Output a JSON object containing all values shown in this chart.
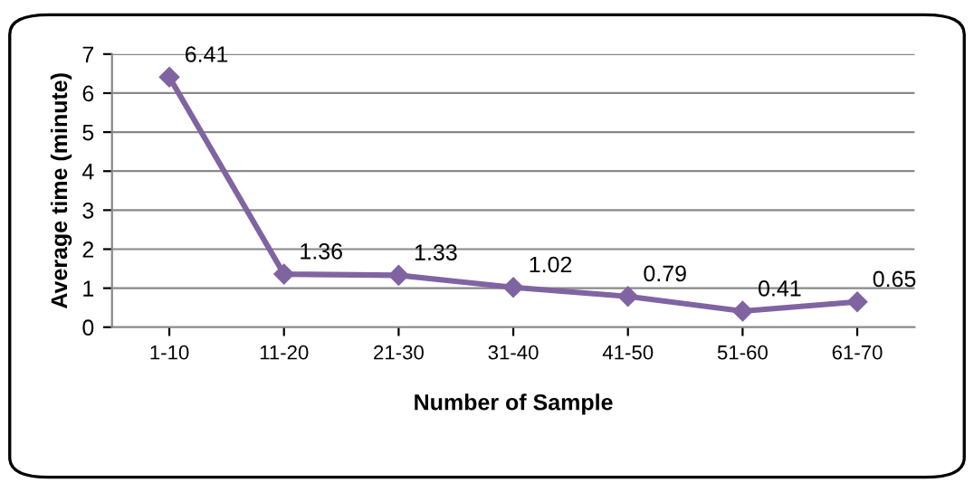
{
  "chart_data": {
    "type": "line",
    "xlabel": "Number of Sample",
    "ylabel": "Average time (minute)",
    "categories": [
      "1-10",
      "11-20",
      "21-30",
      "31-40",
      "41-50",
      "51-60",
      "61-70"
    ],
    "series": [
      {
        "color": "#8064a2",
        "values": [
          6.41,
          1.36,
          1.33,
          1.02,
          0.79,
          0.41,
          0.65
        ]
      }
    ],
    "ylim": [
      0,
      7
    ],
    "yticks": [
      0,
      1,
      2,
      3,
      4,
      5,
      6,
      7
    ],
    "grid": "y",
    "marker": "diamond",
    "line_style": "solid",
    "data_labels": true,
    "legend": false
  }
}
